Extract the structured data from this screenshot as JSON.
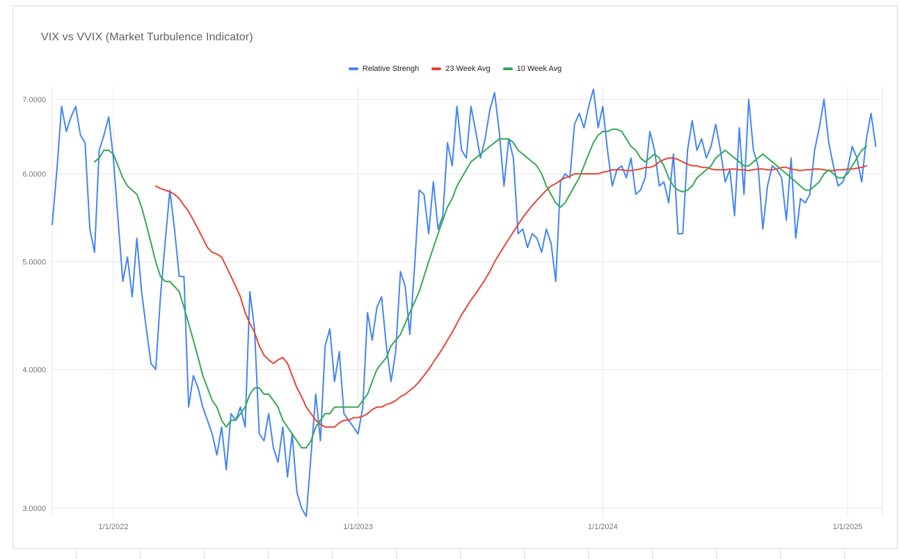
{
  "chart_data": {
    "type": "line",
    "title": "VIX vs VVIX (Market Turbulence Indicator)",
    "legend_position": "top-center",
    "grid": true,
    "background": "#ffffff",
    "gridline_color": "#e6e6e6",
    "axis_text_color": "#757575",
    "y_axis": {
      "scale": "log",
      "min": 3.0,
      "max": 7.0,
      "ticks": [
        7,
        6,
        5,
        4,
        3
      ],
      "tick_labels": [
        "7.0000",
        "6.0000",
        "5.0000",
        "4.0000",
        "3.0000"
      ]
    },
    "x_axis": {
      "unit": "weeks",
      "ticks": [
        {
          "week": 13,
          "label": "1/1/2022"
        },
        {
          "week": 65,
          "label": "1/1/2023"
        },
        {
          "week": 117,
          "label": "1/1/2024"
        },
        {
          "week": 169,
          "label": "1/1/2025"
        }
      ]
    },
    "series": [
      {
        "name": "Relative Strengh",
        "color": "#4285f4",
        "start_week": 0,
        "values": [
          5.4,
          6.05,
          6.9,
          6.55,
          6.75,
          6.9,
          6.5,
          6.4,
          5.35,
          5.1,
          6.3,
          6.5,
          6.75,
          6.2,
          5.45,
          4.8,
          5.05,
          4.65,
          5.25,
          4.7,
          4.35,
          4.05,
          4.0,
          4.65,
          5.2,
          5.8,
          5.35,
          4.85,
          4.85,
          3.7,
          3.95,
          3.85,
          3.7,
          3.6,
          3.5,
          3.35,
          3.55,
          3.25,
          3.65,
          3.6,
          3.7,
          3.55,
          4.7,
          4.35,
          3.5,
          3.45,
          3.65,
          3.4,
          3.3,
          3.55,
          3.2,
          3.5,
          3.1,
          3.0,
          2.95,
          3.35,
          3.8,
          3.45,
          4.2,
          4.35,
          3.9,
          4.15,
          3.65,
          3.6,
          3.55,
          3.5,
          3.7,
          4.5,
          4.25,
          4.55,
          4.65,
          4.2,
          3.9,
          4.15,
          4.9,
          4.75,
          4.3,
          4.95,
          5.8,
          5.75,
          5.3,
          5.9,
          5.35,
          5.5,
          6.4,
          6.1,
          6.9,
          6.3,
          6.2,
          6.9,
          6.55,
          6.2,
          6.45,
          6.85,
          7.1,
          6.55,
          5.85,
          6.45,
          6.2,
          5.3,
          5.35,
          5.15,
          5.3,
          5.25,
          5.1,
          5.35,
          5.2,
          4.8,
          5.9,
          6.0,
          5.95,
          6.65,
          6.8,
          6.6,
          6.9,
          7.15,
          6.6,
          6.9,
          6.3,
          5.85,
          6.05,
          6.1,
          5.95,
          6.2,
          5.75,
          5.8,
          5.95,
          6.55,
          6.3,
          5.85,
          5.9,
          5.65,
          6.25,
          5.3,
          5.3,
          6.3,
          6.7,
          6.3,
          6.45,
          6.2,
          6.35,
          6.65,
          6.3,
          5.9,
          6.05,
          5.5,
          6.6,
          5.75,
          7.0,
          6.3,
          6.1,
          5.35,
          5.85,
          6.1,
          6.05,
          5.95,
          5.45,
          6.2,
          5.25,
          5.7,
          5.65,
          5.75,
          6.3,
          6.6,
          7.0,
          6.4,
          6.1,
          5.85,
          5.9,
          6.05,
          6.35,
          6.2,
          5.9,
          6.45,
          6.8,
          6.35
        ]
      },
      {
        "name": "23 Week Avg",
        "color": "#ea4335",
        "start_week": 22,
        "values": [
          5.85,
          5.82,
          5.8,
          5.78,
          5.75,
          5.7,
          5.62,
          5.55,
          5.45,
          5.35,
          5.25,
          5.15,
          5.1,
          5.08,
          5.05,
          4.95,
          4.85,
          4.75,
          4.65,
          4.5,
          4.4,
          4.32,
          4.2,
          4.12,
          4.08,
          4.05,
          4.08,
          4.1,
          4.05,
          3.95,
          3.85,
          3.78,
          3.7,
          3.65,
          3.6,
          3.57,
          3.55,
          3.55,
          3.55,
          3.58,
          3.6,
          3.6,
          3.62,
          3.62,
          3.63,
          3.65,
          3.68,
          3.7,
          3.7,
          3.72,
          3.73,
          3.75,
          3.78,
          3.8,
          3.83,
          3.86,
          3.9,
          3.95,
          4.0,
          4.06,
          4.12,
          4.18,
          4.25,
          4.32,
          4.4,
          4.48,
          4.55,
          4.62,
          4.68,
          4.75,
          4.82,
          4.9,
          5.0,
          5.08,
          5.16,
          5.24,
          5.32,
          5.4,
          5.48,
          5.55,
          5.62,
          5.68,
          5.74,
          5.8,
          5.85,
          5.88,
          5.92,
          5.95,
          5.97,
          6.0,
          6.0,
          6.0,
          6.0,
          6.0,
          6.0,
          6.02,
          6.03,
          6.05,
          6.05,
          6.05,
          6.04,
          6.04,
          6.05,
          6.06,
          6.08,
          6.08,
          6.1,
          6.15,
          6.18,
          6.2,
          6.2,
          6.18,
          6.15,
          6.12,
          6.1,
          6.1,
          6.08,
          6.08,
          6.06,
          6.05,
          6.05,
          6.05,
          6.06,
          6.06,
          6.05,
          6.05,
          6.04,
          6.05,
          6.06,
          6.06,
          6.05,
          6.05,
          6.06,
          6.08,
          6.08,
          6.06,
          6.05,
          6.04,
          6.05,
          6.05,
          6.06,
          6.06,
          6.05,
          6.04,
          6.04,
          6.05,
          6.05,
          6.06,
          6.06,
          6.07,
          6.08,
          6.1
        ]
      },
      {
        "name": "10 Week Avg",
        "color": "#34a853",
        "start_week": 9,
        "values": [
          6.15,
          6.2,
          6.3,
          6.3,
          6.25,
          6.1,
          5.95,
          5.85,
          5.8,
          5.75,
          5.6,
          5.4,
          5.2,
          5.0,
          4.85,
          4.8,
          4.8,
          4.75,
          4.7,
          4.55,
          4.4,
          4.25,
          4.1,
          3.95,
          3.85,
          3.75,
          3.7,
          3.6,
          3.55,
          3.6,
          3.6,
          3.65,
          3.7,
          3.8,
          3.85,
          3.85,
          3.8,
          3.8,
          3.75,
          3.7,
          3.6,
          3.55,
          3.5,
          3.45,
          3.4,
          3.4,
          3.45,
          3.55,
          3.6,
          3.65,
          3.65,
          3.7,
          3.7,
          3.7,
          3.7,
          3.7,
          3.7,
          3.75,
          3.8,
          3.9,
          4.0,
          4.05,
          4.1,
          4.2,
          4.25,
          4.3,
          4.4,
          4.5,
          4.6,
          4.7,
          4.85,
          5.0,
          5.15,
          5.3,
          5.45,
          5.6,
          5.7,
          5.85,
          5.95,
          6.05,
          6.15,
          6.2,
          6.25,
          6.3,
          6.35,
          6.4,
          6.45,
          6.45,
          6.45,
          6.4,
          6.3,
          6.25,
          6.2,
          6.15,
          6.1,
          6.0,
          5.85,
          5.75,
          5.65,
          5.6,
          5.65,
          5.75,
          5.85,
          5.95,
          6.1,
          6.25,
          6.4,
          6.5,
          6.55,
          6.55,
          6.58,
          6.58,
          6.55,
          6.45,
          6.35,
          6.3,
          6.2,
          6.15,
          6.2,
          6.25,
          6.2,
          6.1,
          5.95,
          5.85,
          5.8,
          5.78,
          5.8,
          5.85,
          5.95,
          6.0,
          6.05,
          6.1,
          6.2,
          6.25,
          6.3,
          6.25,
          6.2,
          6.15,
          6.1,
          6.1,
          6.15,
          6.2,
          6.25,
          6.2,
          6.15,
          6.1,
          6.05,
          6.0,
          5.95,
          5.9,
          5.85,
          5.8,
          5.8,
          5.85,
          5.9,
          6.0,
          6.05,
          6.0,
          5.95,
          5.95,
          6.0,
          6.1,
          6.2,
          6.3,
          6.35
        ]
      }
    ]
  }
}
